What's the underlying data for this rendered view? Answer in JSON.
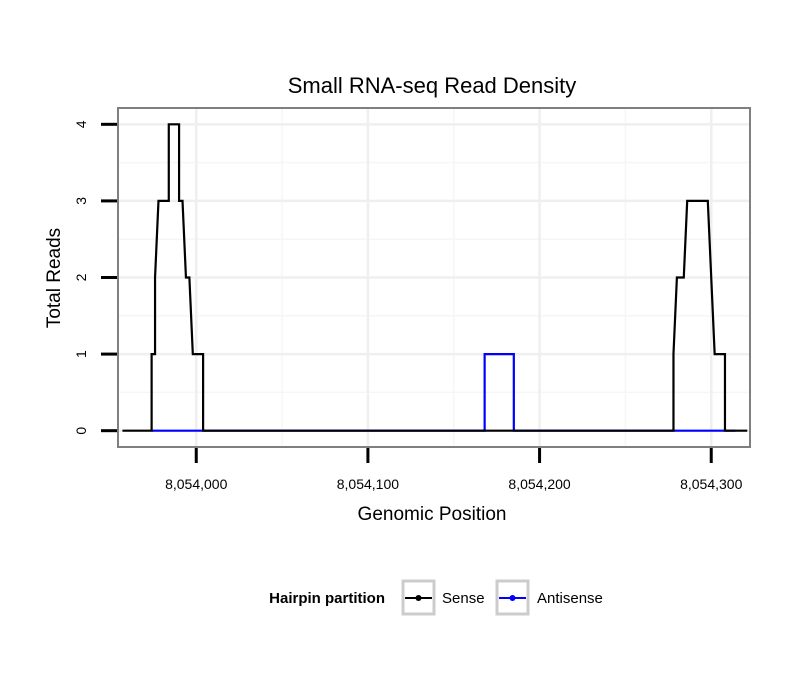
{
  "chart_data": {
    "type": "line",
    "title": "Small RNA-seq Read Density",
    "xlabel": "Genomic Position",
    "ylabel": "Total Reads",
    "xlim": [
      8053955,
      8054322
    ],
    "ylim": [
      -0.2,
      4.2
    ],
    "x_ticks": [
      {
        "value": 8054000,
        "label": "8,054,000"
      },
      {
        "value": 8054100,
        "label": "8,054,100"
      },
      {
        "value": 8054200,
        "label": "8,054,200"
      },
      {
        "value": 8054300,
        "label": "8,054,300"
      }
    ],
    "y_ticks": [
      {
        "value": 0,
        "label": "0"
      },
      {
        "value": 1,
        "label": "1"
      },
      {
        "value": 2,
        "label": "2"
      },
      {
        "value": 3,
        "label": "3"
      },
      {
        "value": 4,
        "label": "4"
      }
    ],
    "grid": true,
    "legend": {
      "title": "Hairpin partition",
      "position": "bottom"
    },
    "series": [
      {
        "name": "Sense",
        "color": "#000000",
        "points": [
          [
            8053957,
            0
          ],
          [
            8053974,
            0
          ],
          [
            8053974,
            1
          ],
          [
            8053976,
            1
          ],
          [
            8053976,
            2
          ],
          [
            8053978,
            3
          ],
          [
            8053984,
            3
          ],
          [
            8053984,
            4
          ],
          [
            8053987,
            4
          ],
          [
            8053987,
            4
          ],
          [
            8053990,
            4
          ],
          [
            8053990,
            3
          ],
          [
            8053992,
            3
          ],
          [
            8053994,
            2
          ],
          [
            8053996,
            2
          ],
          [
            8053998,
            1
          ],
          [
            8054004,
            1
          ],
          [
            8054004,
            0
          ],
          [
            8054278,
            0
          ],
          [
            8054278,
            1
          ],
          [
            8054280,
            2
          ],
          [
            8054284,
            2
          ],
          [
            8054286,
            3
          ],
          [
            8054298,
            3
          ],
          [
            8054300,
            2
          ],
          [
            8054302,
            1
          ],
          [
            8054308,
            1
          ],
          [
            8054308,
            0
          ],
          [
            8054321,
            0
          ]
        ]
      },
      {
        "name": "Antisense",
        "color": "#0000ff",
        "points": [
          [
            8053974,
            0
          ],
          [
            8054004,
            0
          ],
          [
            8054004,
            0
          ],
          [
            8054168,
            0
          ],
          [
            8054168,
            1
          ],
          [
            8054185,
            1
          ],
          [
            8054185,
            0
          ],
          [
            8054278,
            0
          ],
          [
            8054314,
            0
          ]
        ]
      }
    ]
  }
}
